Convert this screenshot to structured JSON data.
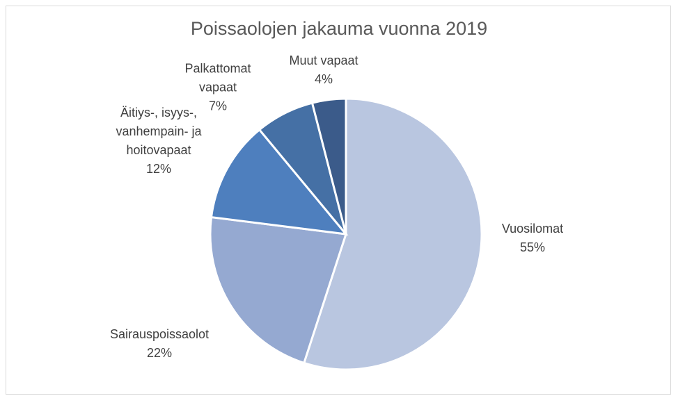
{
  "chart_data": {
    "type": "pie",
    "title": "Poissaolojen jakauma vuonna 2019",
    "categories": [
      "Vuosilomat",
      "Sairauspoissaolot",
      "Äitiys-, isyys-, vanhempain- ja hoitovapaat",
      "Palkattomat vapaat",
      "Muut vapaat"
    ],
    "values": [
      55,
      22,
      12,
      7,
      4
    ],
    "value_labels": [
      "55%",
      "22%",
      "12%",
      "7%",
      "4%"
    ],
    "colors": [
      "#b9c6e0",
      "#95a9d1",
      "#4e7fbe",
      "#4570a5",
      "#3b5b8a"
    ]
  }
}
